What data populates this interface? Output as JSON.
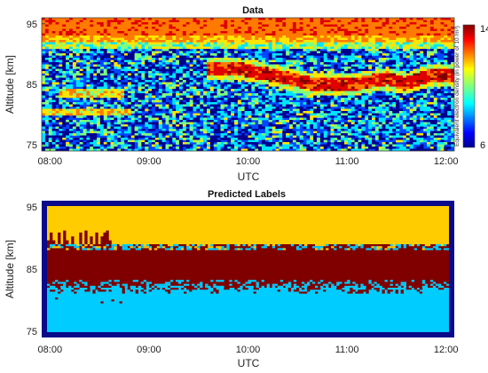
{
  "chart_data": [
    {
      "type": "heatmap",
      "title": "Data",
      "xlabel": "UTC",
      "ylabel": "Altitude [km]",
      "x_ticks": [
        "08:00",
        "09:00",
        "10:00",
        "11:00",
        "12:00"
      ],
      "y_ticks": [
        "75",
        "85",
        "95"
      ],
      "xlim": [
        "07:55",
        "12:05"
      ],
      "ylim": [
        74,
        96
      ],
      "colorbar": {
        "label": "Equivalent electron density (in power of 10 /m³)",
        "min_label": "6",
        "max_label": "14",
        "range": [
          6,
          14
        ]
      },
      "features": {
        "high_density_layer_km": [
          91,
          96
        ],
        "sporadic_layer_track": {
          "time": [
            "09:35",
            "09:55",
            "10:15",
            "10:40",
            "11:05",
            "11:25",
            "11:35",
            "11:50",
            "12:05"
          ],
          "altitude_km": [
            87.5,
            87.5,
            86.5,
            85,
            85,
            86,
            85,
            86.5,
            86.5
          ]
        },
        "weak_layers": [
          {
            "time": [
              "08:05",
              "08:45"
            ],
            "altitude_km": 83.5
          },
          {
            "time": [
              "07:55",
              "08:50"
            ],
            "altitude_km": 80.5
          }
        ],
        "colors": [
          "#00008f",
          "#0047ff",
          "#00e5ff",
          "#7fff7f",
          "#ffe500",
          "#ff7a00",
          "#e00000",
          "#800000"
        ]
      }
    },
    {
      "type": "heatmap",
      "title": "Predicted Labels",
      "xlabel": "UTC",
      "ylabel": "Altitude [km]",
      "x_ticks": [
        "08:00",
        "09:00",
        "10:00",
        "11:00",
        "12:00"
      ],
      "y_ticks": [
        "75",
        "85",
        "95"
      ],
      "xlim": [
        "07:55",
        "12:05"
      ],
      "ylim": [
        74,
        96
      ],
      "classes": {
        "upper_region_km": [
          89,
          96
        ],
        "echo_region_km": [
          82,
          89
        ],
        "lower_region_km": [
          74,
          82
        ],
        "colors": {
          "upper": "#ffcc00",
          "echo": "#800000",
          "lower": "#00ccff",
          "border": "#0a0a8a"
        }
      }
    }
  ]
}
